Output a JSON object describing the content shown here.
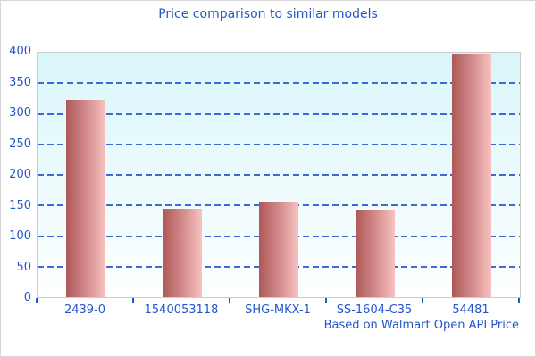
{
  "header": {
    "title": "Price comparison to similar models"
  },
  "footer": {
    "caption": "Based on Walmart Open API Price"
  },
  "colors": {
    "text_blue": "#2356c9",
    "grid_blue": "#3c69d4",
    "plot_border": "#c8cccb",
    "plot_bg_top": "#d8f6fa",
    "plot_bg_bottom": "#ffffff",
    "bar_dark": "#ae5858",
    "bar_mid": "#d68f8f",
    "bar_light": "#f8c2c0",
    "window_bg": "#ffffff",
    "outer_border": "#d7d7d7"
  },
  "chart_data": {
    "type": "bar",
    "title": "Price comparison to similar models",
    "categories": [
      "2439-0",
      "1540053118",
      "SHG-MKX-1",
      "SS-1604-C35",
      "54481"
    ],
    "values": [
      322,
      145,
      156,
      143,
      398
    ],
    "xlabel": "",
    "ylabel": "",
    "ylim": [
      0,
      400
    ],
    "ytick_step": 50,
    "grid": "horizontal-dashed",
    "legend": "none",
    "annotation": "Based on Walmart Open API Price"
  }
}
